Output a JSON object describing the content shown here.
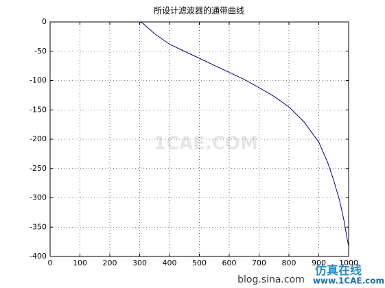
{
  "chart_data": {
    "type": "line",
    "title": "所设计滤波器的通带曲线",
    "x": [
      300,
      310,
      350,
      400,
      450,
      500,
      550,
      600,
      650,
      700,
      750,
      800,
      850,
      900,
      930,
      950,
      970,
      985,
      995,
      1000
    ],
    "series": [
      {
        "color": "#00007f",
        "values": [
          0,
          -2,
          -20,
          -38,
          -50,
          -62,
          -74,
          -86,
          -98,
          -112,
          -127,
          -145,
          -170,
          -205,
          -240,
          -270,
          -305,
          -340,
          -370,
          -382
        ]
      }
    ],
    "xlim": [
      0,
      1000
    ],
    "xticks": [
      0,
      100,
      200,
      300,
      400,
      500,
      600,
      700,
      800,
      900,
      1000
    ],
    "ylim": [
      -400,
      0
    ],
    "yticks": [
      -400,
      -350,
      -300,
      -250,
      -200,
      -150,
      -100,
      -50,
      0
    ],
    "grid": true,
    "watermarks": [
      "1CAE.COM",
      "blog.sina.com",
      "仿真在线",
      "www.1CAE.com"
    ]
  }
}
